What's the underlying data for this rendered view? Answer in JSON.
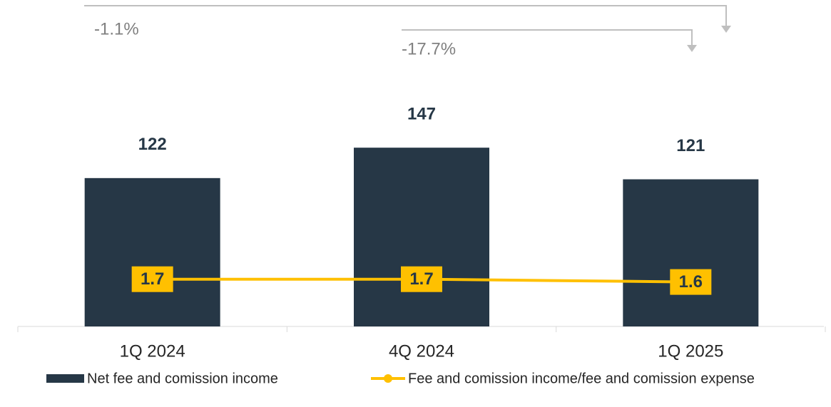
{
  "chart_data": {
    "type": "bar_line",
    "categories": [
      "1Q 2024",
      "4Q 2024",
      "1Q 2025"
    ],
    "series": [
      {
        "name": "Net fee and comission income",
        "color": "#263746",
        "type": "bar",
        "values": [
          122,
          147,
          121
        ]
      },
      {
        "name": "Fee and comission income/fee and comission expense",
        "color": "#ffc000",
        "type": "line",
        "axis": "y2",
        "values": [
          1.7,
          1.7,
          1.6
        ]
      }
    ],
    "ylim": [
      0,
      160
    ],
    "y2lim": [
      0,
      7
    ],
    "annotations": [
      "-1.1%",
      "-17.7%"
    ],
    "legend": "bottom"
  }
}
